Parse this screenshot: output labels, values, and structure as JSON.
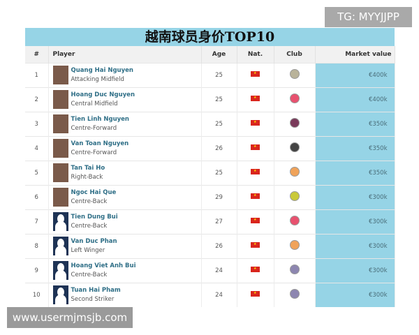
{
  "badge": "TG: MYYJJPP",
  "watermark": "www.usermjmsjb.com",
  "title": "越南球员身价TOP10",
  "headers": {
    "rank": "#",
    "player": "Player",
    "age": "Age",
    "nat": "Nat.",
    "club": "Club",
    "value": "Market value"
  },
  "colors": {
    "title_bg": "#96d4e6",
    "value_bg": "#96d4e6",
    "name": "#2e6e86"
  },
  "rows": [
    {
      "rank": "1",
      "name": "Quang Hai Nguyen",
      "position": "Attacking Midfield",
      "age": "25",
      "nat": "vietnam-flag",
      "club": "#b9b39a",
      "avatar": "photo",
      "value": "€400k"
    },
    {
      "rank": "2",
      "name": "Hoang Duc Nguyen",
      "position": "Central Midfield",
      "age": "25",
      "nat": "vietnam-flag",
      "club": "#e8516f",
      "avatar": "photo",
      "value": "€400k"
    },
    {
      "rank": "3",
      "name": "Tien Linh Nguyen",
      "position": "Centre-Forward",
      "age": "25",
      "nat": "vietnam-flag",
      "club": "#7a3a5a",
      "avatar": "photo",
      "value": "€350k"
    },
    {
      "rank": "4",
      "name": "Van Toan Nguyen",
      "position": "Centre-Forward",
      "age": "26",
      "nat": "vietnam-flag",
      "club": "#444444",
      "avatar": "photo",
      "value": "€350k"
    },
    {
      "rank": "5",
      "name": "Tan Tai Ho",
      "position": "Right-Back",
      "age": "25",
      "nat": "vietnam-flag",
      "club": "#f0a35a",
      "avatar": "photo",
      "value": "€350k"
    },
    {
      "rank": "6",
      "name": "Ngoc Hai Que",
      "position": "Centre-Back",
      "age": "29",
      "nat": "vietnam-flag",
      "club": "#c9c93a",
      "avatar": "photo",
      "value": "€300k"
    },
    {
      "rank": "7",
      "name": "Tien Dung Bui",
      "position": "Centre-Back",
      "age": "27",
      "nat": "vietnam-flag",
      "club": "#e8516f",
      "avatar": "silhouette",
      "value": "€300k"
    },
    {
      "rank": "8",
      "name": "Van Duc Phan",
      "position": "Left Winger",
      "age": "26",
      "nat": "vietnam-flag",
      "club": "#f0a35a",
      "avatar": "silhouette",
      "value": "€300k"
    },
    {
      "rank": "9",
      "name": "Hoang Viet Anh Bui",
      "position": "Centre-Back",
      "age": "24",
      "nat": "vietnam-flag",
      "club": "#8d86b0",
      "avatar": "silhouette",
      "value": "€300k"
    },
    {
      "rank": "10",
      "name": "Tuan Hai Pham",
      "position": "Second Striker",
      "age": "24",
      "nat": "vietnam-flag",
      "club": "#8d86b0",
      "avatar": "silhouette",
      "value": "€300k"
    }
  ]
}
